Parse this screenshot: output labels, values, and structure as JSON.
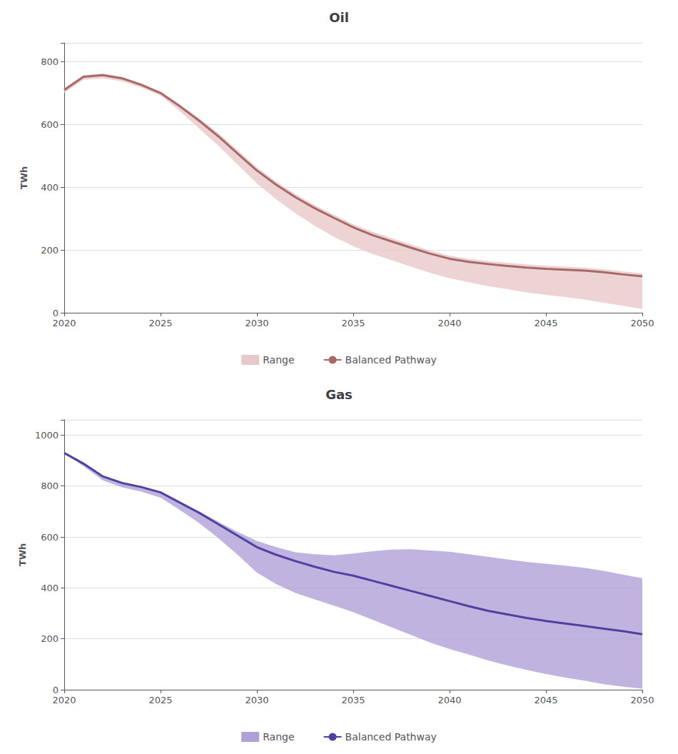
{
  "chart_data": [
    {
      "type": "line",
      "title": "Oil",
      "ylabel": "TWh",
      "x": [
        2020,
        2021,
        2022,
        2023,
        2024,
        2025,
        2026,
        2027,
        2028,
        2029,
        2030,
        2031,
        2032,
        2033,
        2034,
        2035,
        2036,
        2037,
        2038,
        2039,
        2040,
        2041,
        2042,
        2043,
        2044,
        2045,
        2046,
        2047,
        2048,
        2049,
        2050
      ],
      "series": [
        {
          "name": "Range",
          "type": "band",
          "color": "#e8c8c8",
          "upper": [
            715,
            757,
            762,
            752,
            731,
            705,
            663,
            620,
            572,
            518,
            463,
            418,
            378,
            343,
            312,
            282,
            258,
            238,
            218,
            198,
            182,
            172,
            165,
            159,
            154,
            150,
            147,
            144,
            139,
            132,
            125
          ],
          "lower": [
            700,
            742,
            747,
            737,
            717,
            692,
            642,
            587,
            532,
            472,
            412,
            362,
            317,
            277,
            242,
            212,
            187,
            167,
            147,
            127,
            110,
            97,
            85,
            75,
            65,
            57,
            50,
            42,
            32,
            22,
            12
          ]
        },
        {
          "name": "Balanced Pathway",
          "type": "line",
          "color": "#a86868",
          "values": [
            710,
            752,
            757,
            747,
            726,
            700,
            658,
            612,
            562,
            507,
            453,
            408,
            368,
            333,
            302,
            272,
            247,
            227,
            207,
            188,
            172,
            162,
            155,
            149,
            144,
            140,
            137,
            134,
            129,
            122,
            116
          ]
        }
      ],
      "xlim": [
        2020,
        2050
      ],
      "xticks": [
        2020,
        2025,
        2030,
        2035,
        2040,
        2045,
        2050
      ],
      "ylim": [
        0,
        860
      ],
      "yticks": [
        0,
        200,
        400,
        600,
        800
      ],
      "grid": true,
      "legend": "bottom"
    },
    {
      "type": "line",
      "title": "Gas",
      "ylabel": "TWh",
      "x": [
        2020,
        2021,
        2022,
        2023,
        2024,
        2025,
        2026,
        2027,
        2028,
        2029,
        2030,
        2031,
        2032,
        2033,
        2034,
        2035,
        2036,
        2037,
        2038,
        2039,
        2040,
        2041,
        2042,
        2043,
        2044,
        2045,
        2046,
        2047,
        2048,
        2049,
        2050
      ],
      "series": [
        {
          "name": "Range",
          "type": "band",
          "color": "#b0a0d8",
          "upper": [
            930,
            888,
            838,
            812,
            796,
            775,
            735,
            700,
            660,
            620,
            585,
            560,
            540,
            532,
            528,
            535,
            544,
            550,
            552,
            547,
            542,
            532,
            522,
            512,
            502,
            495,
            487,
            479,
            467,
            452,
            438
          ],
          "lower": [
            930,
            878,
            822,
            795,
            778,
            754,
            706,
            655,
            595,
            530,
            460,
            415,
            380,
            355,
            330,
            305,
            275,
            245,
            215,
            185,
            160,
            138,
            115,
            95,
            78,
            62,
            48,
            36,
            22,
            12,
            4
          ]
        },
        {
          "name": "Balanced Pathway",
          "type": "line",
          "color": "#5040a0",
          "values": [
            930,
            888,
            838,
            812,
            796,
            775,
            735,
            695,
            650,
            605,
            560,
            530,
            505,
            483,
            463,
            448,
            428,
            408,
            388,
            368,
            348,
            328,
            310,
            296,
            282,
            270,
            260,
            250,
            240,
            230,
            218
          ]
        }
      ],
      "xlim": [
        2020,
        2050
      ],
      "xticks": [
        2020,
        2025,
        2030,
        2035,
        2040,
        2045,
        2050
      ],
      "ylim": [
        0,
        1060
      ],
      "yticks": [
        0,
        200,
        400,
        600,
        800,
        1000
      ],
      "grid": true,
      "legend": "bottom"
    }
  ]
}
